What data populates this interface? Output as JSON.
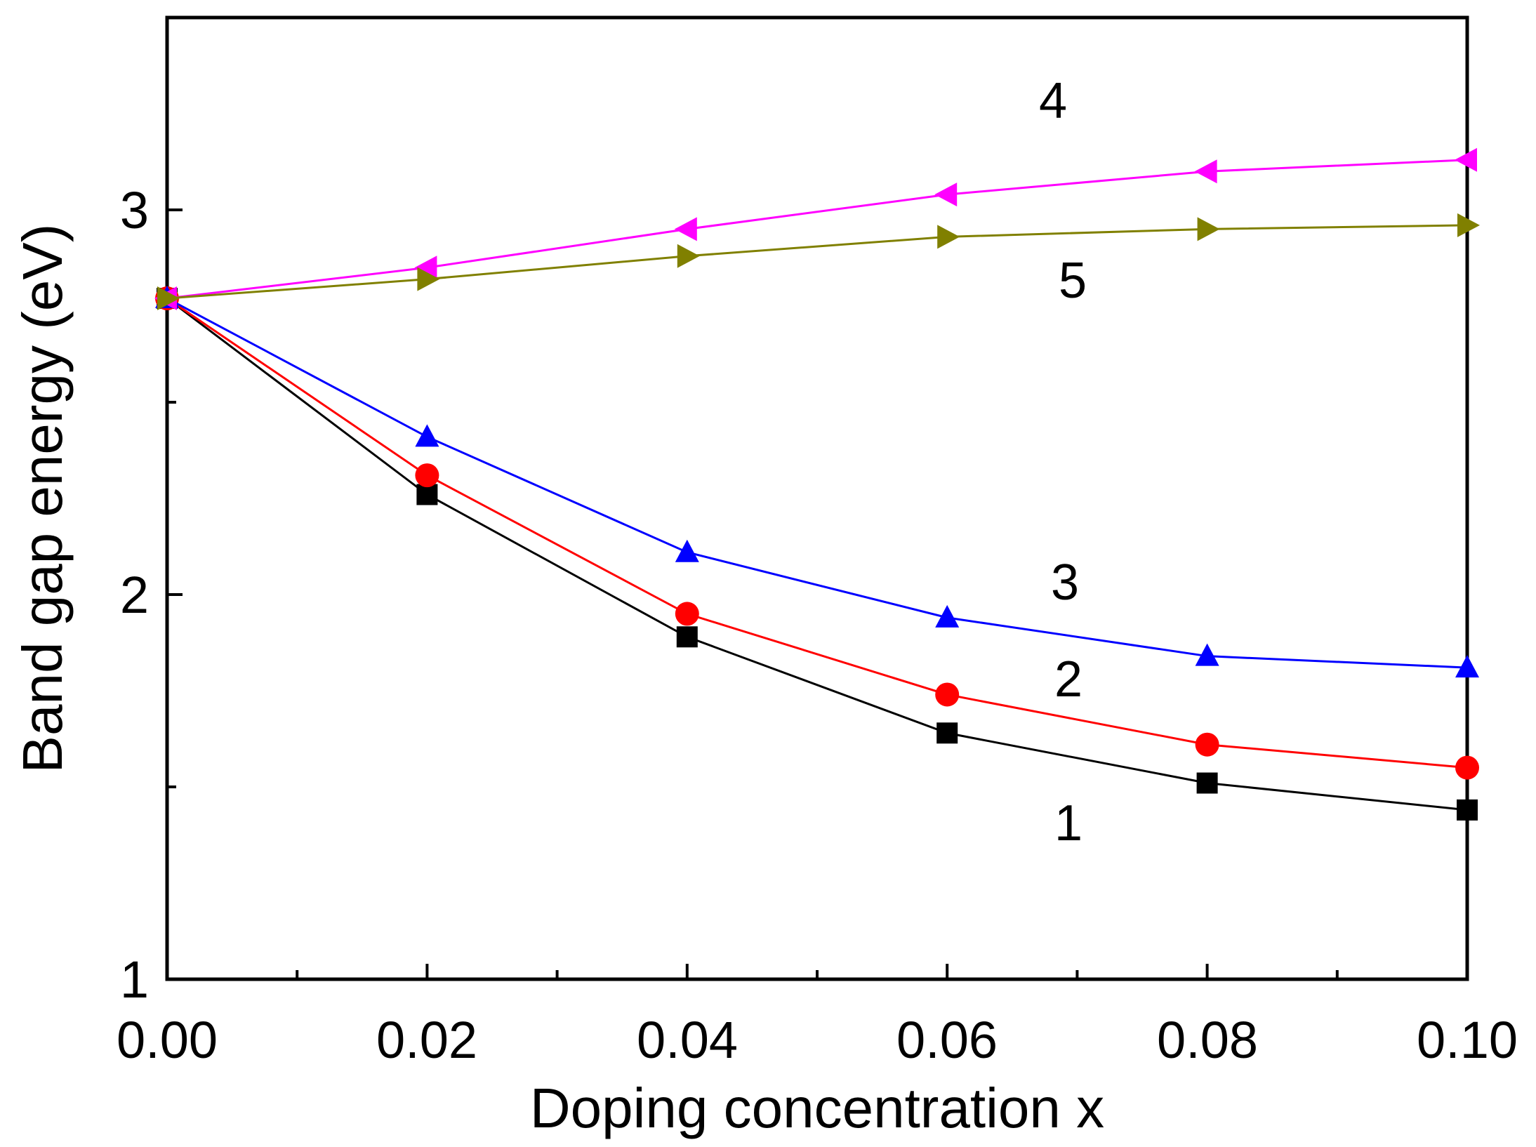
{
  "chart_data": {
    "type": "line",
    "title": "",
    "xlabel": "Doping concentration x",
    "ylabel": "Band gap energy (eV)",
    "xlim": [
      0.0,
      0.1
    ],
    "ylim": [
      1.0,
      3.5
    ],
    "xticks": [
      "0.00",
      "0.02",
      "0.04",
      "0.06",
      "0.08",
      "0.10"
    ],
    "yticks": [
      "1",
      "2",
      "3"
    ],
    "grid": false,
    "x": [
      0.0,
      0.02,
      0.04,
      0.06,
      0.08,
      0.1
    ],
    "series": [
      {
        "label": "1",
        "color": "#000000",
        "marker": "square",
        "values": [
          2.77,
          2.26,
          1.89,
          1.64,
          1.51,
          1.44
        ]
      },
      {
        "label": "2",
        "color": "#ff0000",
        "marker": "circle",
        "values": [
          2.77,
          2.31,
          1.95,
          1.74,
          1.61,
          1.55
        ]
      },
      {
        "label": "3",
        "color": "#0000ff",
        "marker": "triangle-up",
        "values": [
          2.77,
          2.41,
          2.11,
          1.94,
          1.84,
          1.81
        ]
      },
      {
        "label": "4",
        "color": "#ff00ff",
        "marker": "triangle-left",
        "values": [
          2.77,
          2.85,
          2.95,
          3.04,
          3.1,
          3.13
        ]
      },
      {
        "label": "5",
        "color": "#808000",
        "marker": "triangle-right",
        "values": [
          2.77,
          2.82,
          2.88,
          2.93,
          2.95,
          2.96
        ]
      }
    ]
  }
}
